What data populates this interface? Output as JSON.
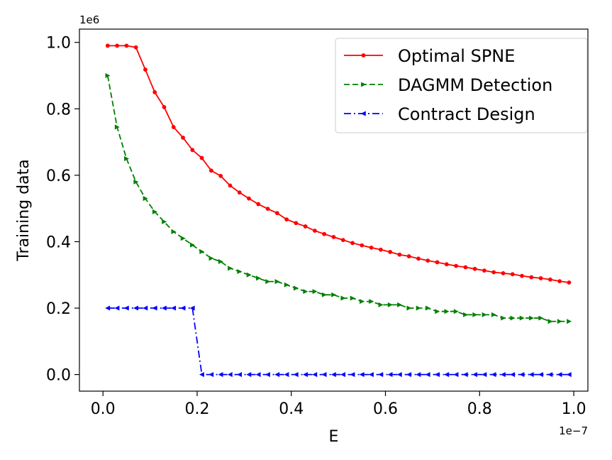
{
  "chart_data": {
    "type": "line",
    "title": "",
    "xlabel": "E",
    "ylabel": "Training data",
    "x_offset_label": "1e−7",
    "y_offset_label": "1e6",
    "xlim": [
      -0.05,
      1.03
    ],
    "ylim": [
      -0.05,
      1.04
    ],
    "xticks": [
      0.0,
      0.2,
      0.4,
      0.6,
      0.8,
      1.0
    ],
    "xtick_labels": [
      "0.0",
      "0.2",
      "0.4",
      "0.6",
      "0.8",
      "1.0"
    ],
    "yticks": [
      0.0,
      0.2,
      0.4,
      0.6,
      0.8,
      1.0
    ],
    "ytick_labels": [
      "0.0",
      "0.2",
      "0.4",
      "0.6",
      "0.8",
      "1.0"
    ],
    "grid": false,
    "legend_position": "top-right",
    "x": [
      0.01,
      0.03,
      0.05,
      0.07,
      0.09,
      0.11,
      0.13,
      0.15,
      0.17,
      0.19,
      0.21,
      0.23,
      0.25,
      0.27,
      0.29,
      0.31,
      0.33,
      0.35,
      0.37,
      0.39,
      0.41,
      0.43,
      0.45,
      0.47,
      0.49,
      0.51,
      0.53,
      0.55,
      0.57,
      0.59,
      0.61,
      0.63,
      0.65,
      0.67,
      0.69,
      0.71,
      0.73,
      0.75,
      0.77,
      0.79,
      0.81,
      0.83,
      0.85,
      0.87,
      0.89,
      0.91,
      0.93,
      0.95,
      0.97,
      0.99
    ],
    "series": [
      {
        "name": "Optimal SPNE",
        "color": "#ff0000",
        "dash": "solid",
        "marker": "circle",
        "values": [
          0.99,
          0.99,
          0.99,
          0.985,
          0.918,
          0.85,
          0.805,
          0.745,
          0.713,
          0.676,
          0.652,
          0.614,
          0.598,
          0.569,
          0.548,
          0.53,
          0.513,
          0.499,
          0.486,
          0.467,
          0.456,
          0.446,
          0.433,
          0.423,
          0.414,
          0.405,
          0.396,
          0.389,
          0.382,
          0.376,
          0.369,
          0.361,
          0.356,
          0.349,
          0.343,
          0.338,
          0.332,
          0.327,
          0.323,
          0.318,
          0.313,
          0.308,
          0.305,
          0.302,
          0.297,
          0.293,
          0.29,
          0.286,
          0.281,
          0.277
        ]
      },
      {
        "name": "DAGMM Detection",
        "color": "#008000",
        "dash": "dashed",
        "marker": "triangle-right",
        "values": [
          0.9,
          0.745,
          0.65,
          0.58,
          0.53,
          0.49,
          0.46,
          0.43,
          0.41,
          0.39,
          0.37,
          0.35,
          0.34,
          0.32,
          0.31,
          0.3,
          0.29,
          0.28,
          0.28,
          0.27,
          0.26,
          0.25,
          0.25,
          0.24,
          0.24,
          0.23,
          0.23,
          0.22,
          0.22,
          0.21,
          0.21,
          0.21,
          0.2,
          0.2,
          0.2,
          0.19,
          0.19,
          0.19,
          0.18,
          0.18,
          0.18,
          0.18,
          0.17,
          0.17,
          0.17,
          0.17,
          0.17,
          0.16,
          0.16,
          0.16
        ]
      },
      {
        "name": "Contract Design",
        "color": "#0000ff",
        "dash": "dashdot",
        "marker": "triangle-left",
        "values": [
          0.2,
          0.2,
          0.2,
          0.2,
          0.2,
          0.2,
          0.2,
          0.2,
          0.2,
          0.2,
          0.0,
          0.0,
          0.0,
          0.0,
          0.0,
          0.0,
          0.0,
          0.0,
          0.0,
          0.0,
          0.0,
          0.0,
          0.0,
          0.0,
          0.0,
          0.0,
          0.0,
          0.0,
          0.0,
          0.0,
          0.0,
          0.0,
          0.0,
          0.0,
          0.0,
          0.0,
          0.0,
          0.0,
          0.0,
          0.0,
          0.0,
          0.0,
          0.0,
          0.0,
          0.0,
          0.0,
          0.0,
          0.0,
          0.0,
          0.0
        ]
      }
    ]
  }
}
